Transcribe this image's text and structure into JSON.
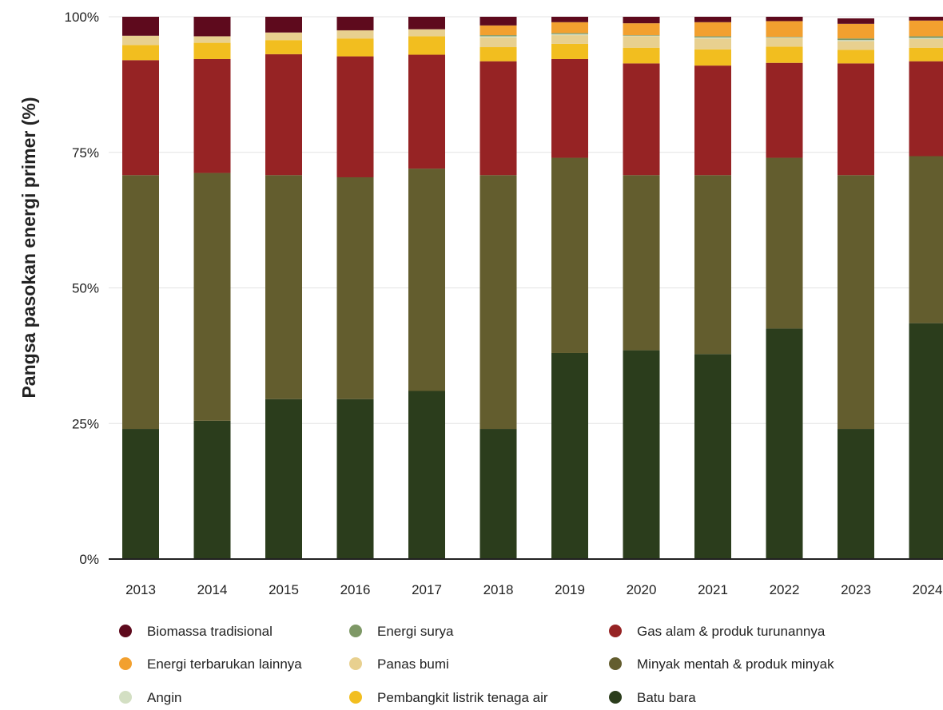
{
  "chart_data": {
    "type": "bar",
    "stacked": true,
    "ylabel": "Pangsa pasokan energi primer (%)",
    "xlabel": "",
    "ylim": [
      0,
      100
    ],
    "y_ticks": [
      0,
      25,
      50,
      75,
      100
    ],
    "y_tick_labels": [
      "0%",
      "25%",
      "50%",
      "75%",
      "100%"
    ],
    "grid": true,
    "legend_position": "bottom",
    "categories": [
      "2013",
      "2014",
      "2015",
      "2016",
      "2017",
      "2018",
      "2019",
      "2020",
      "2021",
      "2022",
      "2023",
      "2024"
    ],
    "series": [
      {
        "name": "Batu bara",
        "color": "#2b3d1c",
        "values": [
          24,
          25.5,
          29.5,
          29.5,
          31,
          24,
          38,
          38.5,
          37.8,
          42.5,
          24,
          43.5
        ]
      },
      {
        "name": "Minyak mentah & produk minyak",
        "color": "#635d2e",
        "values": [
          46.8,
          45.7,
          41.3,
          40.9,
          41,
          46.8,
          36,
          32.3,
          33,
          31.5,
          46.8,
          30.8
        ]
      },
      {
        "name": "Gas alam & produk turunannya",
        "color": "#962324",
        "values": [
          21.2,
          21,
          22.3,
          22.3,
          21,
          21,
          18.2,
          20.6,
          20.2,
          17.5,
          20.6,
          17.5
        ]
      },
      {
        "name": "Pembangkit listrik tenaga air",
        "color": "#f2be1f",
        "values": [
          2.8,
          3,
          2.6,
          3.3,
          3.4,
          2.6,
          2.8,
          2.9,
          3,
          3,
          2.5,
          2.5
        ]
      },
      {
        "name": "Panas bumi",
        "color": "#e8d08f",
        "values": [
          1.7,
          1.2,
          1.4,
          1.5,
          1.3,
          1.8,
          1.6,
          2.1,
          2,
          1.6,
          1.6,
          1.6
        ]
      },
      {
        "name": "Angin",
        "color": "#d3dfc3",
        "values": [
          0,
          0,
          0,
          0,
          0,
          0.2,
          0.2,
          0.1,
          0.2,
          0.1,
          0.2,
          0.2
        ]
      },
      {
        "name": "Energi surya",
        "color": "#7e9866",
        "values": [
          0,
          0,
          0,
          0,
          0,
          0.2,
          0.2,
          0.1,
          0.2,
          0.1,
          0.3,
          0.3
        ]
      },
      {
        "name": "Energi terbarukan lainnya",
        "color": "#f2a02f",
        "values": [
          0,
          0,
          0,
          0,
          0,
          1.8,
          2,
          2.2,
          2.6,
          2.9,
          2.7,
          2.9
        ]
      },
      {
        "name": "Biomassa tradisional",
        "color": "#5e0a1d",
        "values": [
          3.5,
          3.6,
          2.9,
          2.5,
          2.3,
          1.6,
          1,
          1.2,
          1,
          0.8,
          1,
          0.7
        ]
      }
    ]
  },
  "legend": {
    "items": [
      {
        "name": "Biomassa tradisional",
        "color": "#5e0a1d"
      },
      {
        "name": "Energi surya",
        "color": "#7e9866"
      },
      {
        "name": "Gas alam & produk turunannya",
        "color": "#962324"
      },
      {
        "name": "Energi terbarukan lainnya",
        "color": "#f2a02f"
      },
      {
        "name": "Panas bumi",
        "color": "#e8d08f"
      },
      {
        "name": "Minyak mentah & produk minyak",
        "color": "#635d2e"
      },
      {
        "name": "Angin",
        "color": "#d3dfc3"
      },
      {
        "name": "Pembangkit listrik tenaga air",
        "color": "#f2be1f"
      },
      {
        "name": "Batu bara",
        "color": "#2b3d1c"
      }
    ]
  }
}
